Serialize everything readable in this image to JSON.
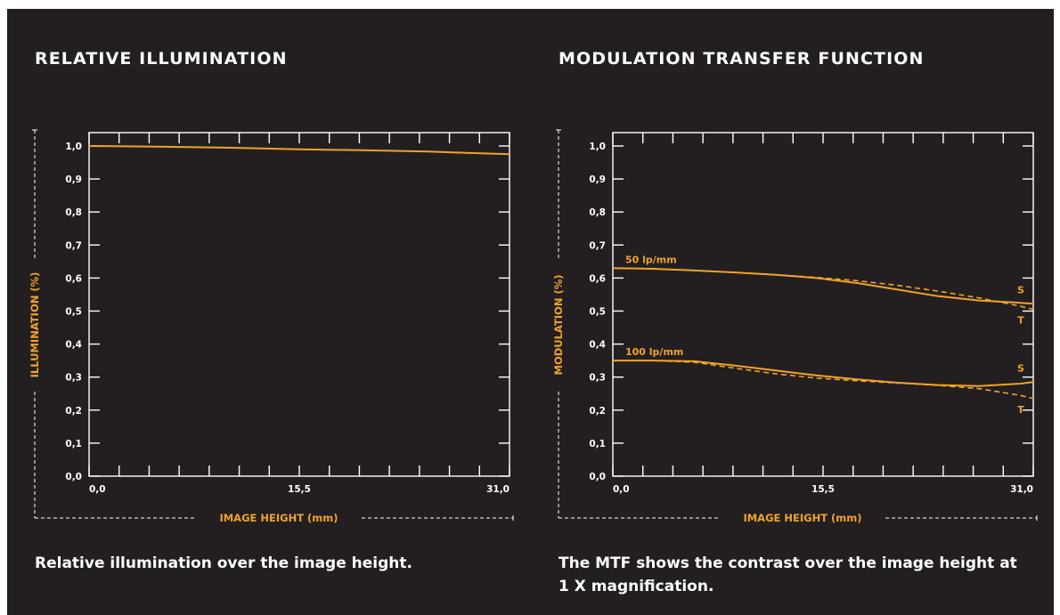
{
  "colors": {
    "background": "#231f20",
    "accent": "#f0a22c",
    "text": "#ffffff"
  },
  "left": {
    "title": "RELATIVE ILLUMINATION",
    "caption": "Relative illumination over the image height."
  },
  "right": {
    "title": "MODULATION TRANSFER FUNCTION",
    "caption": "The MTF shows the contrast over the image height at 1 X magnification."
  },
  "chart_data": [
    {
      "type": "line",
      "title": "RELATIVE ILLUMINATION",
      "xlabel": "IMAGE HEIGHT (mm)",
      "ylabel": "ILLUMINATION (%)",
      "xlim": [
        0,
        31
      ],
      "ylim": [
        0,
        1.0
      ],
      "xticklabels": [
        "0,0",
        "15,5",
        "31,0"
      ],
      "yticklabels": [
        "0,0",
        "0,1",
        "0,2",
        "0,3",
        "0,4",
        "0,5",
        "0,6",
        "0,7",
        "0,8",
        "0,9",
        "1,0"
      ],
      "series": [
        {
          "style": "solid",
          "x": [
            0,
            5,
            10,
            15.5,
            20,
            25,
            31
          ],
          "y": [
            1.0,
            0.998,
            0.995,
            0.99,
            0.987,
            0.983,
            0.975
          ]
        }
      ]
    },
    {
      "type": "line",
      "title": "MODULATION TRANSFER FUNCTION",
      "xlabel": "IMAGE HEIGHT (mm)",
      "ylabel": "MODULATION (%)",
      "xlim": [
        0,
        31
      ],
      "ylim": [
        0,
        1.0
      ],
      "xticklabels": [
        "0,0",
        "15,5",
        "31,0"
      ],
      "yticklabels": [
        "0,0",
        "0,1",
        "0,2",
        "0,3",
        "0,4",
        "0,5",
        "0,6",
        "0,7",
        "0,8",
        "0,9",
        "1,0"
      ],
      "annotations": [
        "50 lp/mm",
        "100 lp/mm"
      ],
      "series": [
        {
          "name": "S",
          "group": "50 lp/mm",
          "style": "solid",
          "x": [
            0,
            3,
            6,
            9,
            12,
            15,
            18,
            21,
            24,
            27,
            30,
            31
          ],
          "y": [
            0.63,
            0.628,
            0.623,
            0.617,
            0.61,
            0.6,
            0.585,
            0.565,
            0.545,
            0.532,
            0.525,
            0.522
          ]
        },
        {
          "name": "T",
          "group": "50 lp/mm",
          "style": "dashed",
          "x": [
            0,
            3,
            6,
            9,
            12,
            15,
            18,
            21,
            24,
            27,
            30,
            31
          ],
          "y": [
            0.63,
            0.628,
            0.623,
            0.617,
            0.61,
            0.602,
            0.592,
            0.578,
            0.56,
            0.54,
            0.515,
            0.505
          ]
        },
        {
          "name": "S",
          "group": "100 lp/mm",
          "style": "solid",
          "x": [
            0,
            3,
            6,
            9,
            12,
            15,
            18,
            21,
            24,
            27,
            30,
            31
          ],
          "y": [
            0.35,
            0.35,
            0.348,
            0.335,
            0.32,
            0.305,
            0.293,
            0.283,
            0.276,
            0.273,
            0.28,
            0.285
          ]
        },
        {
          "name": "T",
          "group": "100 lp/mm",
          "style": "dashed",
          "x": [
            0,
            3,
            6,
            9,
            12,
            15,
            18,
            21,
            24,
            27,
            30,
            31
          ],
          "y": [
            0.35,
            0.35,
            0.345,
            0.327,
            0.31,
            0.297,
            0.289,
            0.282,
            0.275,
            0.265,
            0.245,
            0.235
          ]
        }
      ]
    }
  ]
}
